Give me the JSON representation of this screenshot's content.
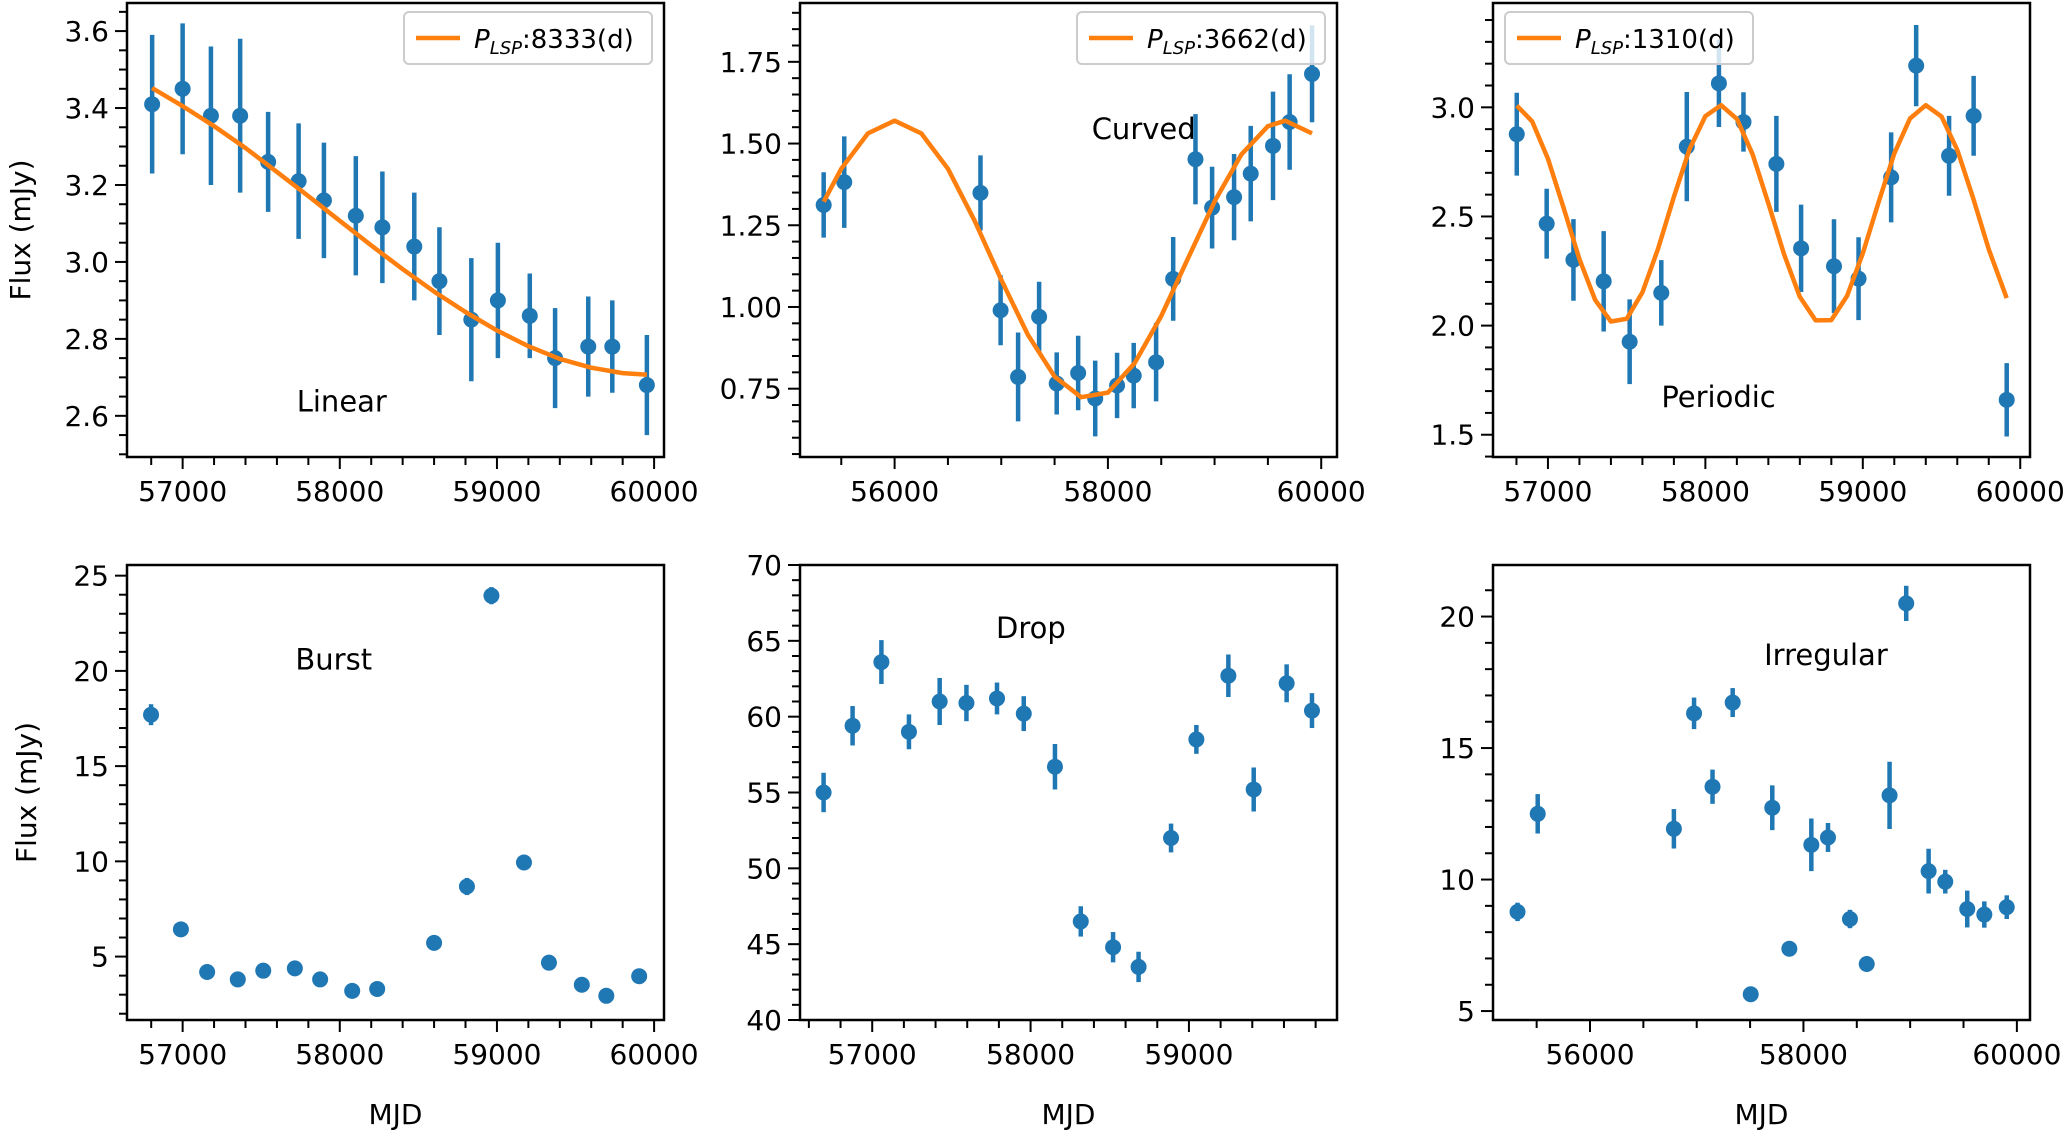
{
  "colors": {
    "points": "#1f77b4",
    "fit": "#ff7f0e"
  },
  "chart_data": [
    {
      "type": "scatter",
      "annotation": "Linear",
      "ylabel": "Flux (mJy)",
      "xlabel": "",
      "xlim": [
        56646,
        60063
      ],
      "ylim": [
        2.493,
        3.673
      ],
      "xticks": [
        57000,
        58000,
        59000,
        60000
      ],
      "xtick_labels": [
        "57000",
        "58000",
        "59000",
        "60000"
      ],
      "x_minor_step": 200,
      "yticks": [
        2.6,
        2.8,
        3.0,
        3.2,
        3.4,
        3.6
      ],
      "ytick_labels": [
        "2.6",
        "2.8",
        "3.0",
        "3.2",
        "3.4",
        "3.6"
      ],
      "y_minor_step": 0.05,
      "legend": {
        "placement": "upper right",
        "symbol": "P",
        "subscript": "LSP",
        "value": ":8333(d)"
      },
      "x": [
        56806,
        57000,
        57180,
        57366,
        57544,
        57738,
        57899,
        58102,
        58271,
        58474,
        58634,
        58837,
        59006,
        59209,
        59370,
        59581,
        59734,
        59954
      ],
      "y": [
        3.41,
        3.45,
        3.38,
        3.38,
        3.26,
        3.21,
        3.16,
        3.12,
        3.09,
        3.04,
        2.95,
        2.85,
        2.9,
        2.86,
        2.75,
        2.78,
        2.78,
        2.68
      ],
      "yerr": [
        0.18,
        0.17,
        0.18,
        0.2,
        0.13,
        0.15,
        0.15,
        0.155,
        0.145,
        0.14,
        0.14,
        0.16,
        0.15,
        0.11,
        0.13,
        0.13,
        0.12,
        0.13
      ],
      "fit": {
        "x": [
          56806,
          57000,
          57200,
          57400,
          57600,
          57800,
          58000,
          58200,
          58400,
          58600,
          58800,
          59000,
          59200,
          59400,
          59600,
          59800,
          59954
        ],
        "y": [
          3.452,
          3.405,
          3.353,
          3.296,
          3.234,
          3.171,
          3.107,
          3.043,
          2.981,
          2.923,
          2.87,
          2.822,
          2.781,
          2.748,
          2.725,
          2.711,
          2.707
        ]
      }
    },
    {
      "type": "scatter",
      "annotation": "Curved",
      "ylabel": "",
      "xlabel": "",
      "xlim": [
        55113,
        60148
      ],
      "ylim": [
        0.541,
        1.93
      ],
      "xticks": [
        56000,
        58000,
        60000
      ],
      "xtick_labels": [
        "56000",
        "58000",
        "60000"
      ],
      "x_minor_step": 500,
      "yticks": [
        0.75,
        1.0,
        1.25,
        1.5,
        1.75
      ],
      "ytick_labels": [
        "0.75",
        "1.00",
        "1.25",
        "1.50",
        "1.75"
      ],
      "y_minor_step": 0.05,
      "legend": {
        "placement": "upper right",
        "symbol": "P",
        "subscript": "LSP",
        "value": ":3662(d)"
      },
      "x": [
        55335,
        55528,
        56805,
        56994,
        57158,
        57355,
        57520,
        57721,
        57881,
        58086,
        58242,
        58452,
        58612,
        58821,
        58977,
        59183,
        59339,
        59548,
        59704,
        59914
      ],
      "y": [
        1.312,
        1.382,
        1.349,
        0.99,
        0.786,
        0.97,
        0.766,
        0.798,
        0.72,
        0.76,
        0.79,
        0.831,
        1.086,
        1.452,
        1.304,
        1.336,
        1.408,
        1.493,
        1.566,
        1.713
      ],
      "yerr": [
        0.1,
        0.14,
        0.115,
        0.107,
        0.136,
        0.107,
        0.095,
        0.114,
        0.116,
        0.1,
        0.1,
        0.12,
        0.128,
        0.138,
        0.125,
        0.132,
        0.146,
        0.166,
        0.146,
        0.148
      ],
      "fit": {
        "x": [
          55335,
          55500,
          55750,
          56000,
          56250,
          56500,
          56750,
          57000,
          57250,
          57500,
          57750,
          58000,
          58250,
          58500,
          58750,
          59000,
          59250,
          59500,
          59662,
          59914
        ],
        "y": [
          1.322,
          1.423,
          1.531,
          1.57,
          1.531,
          1.423,
          1.264,
          1.083,
          0.915,
          0.787,
          0.724,
          0.738,
          0.828,
          0.972,
          1.148,
          1.323,
          1.466,
          1.553,
          1.57,
          1.531
        ]
      }
    },
    {
      "type": "scatter",
      "annotation": "Periodic",
      "ylabel": "",
      "xlabel": "",
      "xlim": [
        56651,
        60062
      ],
      "ylim": [
        1.398,
        3.478
      ],
      "xticks": [
        57000,
        58000,
        59000,
        60000
      ],
      "xtick_labels": [
        "57000",
        "58000",
        "59000",
        "60000"
      ],
      "x_minor_step": 200,
      "yticks": [
        1.5,
        2.0,
        2.5,
        3.0
      ],
      "ytick_labels": [
        "1.5",
        "2.0",
        "2.5",
        "3.0"
      ],
      "y_minor_step": 0.1,
      "legend": {
        "placement": "upper left",
        "symbol": "P",
        "subscript": "LSP",
        "value": ":1310(d)"
      },
      "x": [
        56802,
        56992,
        57162,
        57354,
        57519,
        57720,
        57882,
        58086,
        58242,
        58451,
        58608,
        58817,
        58973,
        59180,
        59339,
        59548,
        59704,
        59914
      ],
      "y": [
        2.877,
        2.467,
        2.301,
        2.203,
        1.926,
        2.15,
        2.82,
        3.11,
        2.933,
        2.741,
        2.354,
        2.272,
        2.215,
        2.679,
        3.191,
        2.778,
        2.961,
        1.66
      ],
      "yerr": [
        0.19,
        0.16,
        0.187,
        0.23,
        0.194,
        0.15,
        0.25,
        0.2,
        0.136,
        0.22,
        0.2,
        0.215,
        0.19,
        0.206,
        0.186,
        0.183,
        0.183,
        0.168
      ],
      "fit": {
        "x": [
          56802,
          56900,
          57000,
          57100,
          57200,
          57300,
          57400,
          57500,
          57600,
          57700,
          57800,
          57900,
          58000,
          58100,
          58200,
          58300,
          58400,
          58500,
          58600,
          58700,
          58800,
          58900,
          59000,
          59100,
          59200,
          59300,
          59400,
          59500,
          59600,
          59700,
          59800,
          59914
        ],
        "y": [
          3.008,
          2.935,
          2.765,
          2.538,
          2.305,
          2.117,
          2.019,
          2.031,
          2.152,
          2.353,
          2.59,
          2.809,
          2.96,
          3.01,
          2.947,
          2.785,
          2.561,
          2.326,
          2.132,
          2.024,
          2.025,
          2.136,
          2.331,
          2.566,
          2.789,
          2.949,
          3.01,
          2.958,
          2.805,
          2.586,
          2.349,
          2.126
        ]
      }
    },
    {
      "type": "scatter",
      "annotation": "Burst",
      "ylabel": "Flux (mJy)",
      "xlabel": "MJD",
      "xlim": [
        56646,
        60063
      ],
      "ylim": [
        1.67,
        25.56
      ],
      "xticks": [
        57000,
        58000,
        59000,
        60000
      ],
      "xtick_labels": [
        "57000",
        "58000",
        "59000",
        "60000"
      ],
      "x_minor_step": 200,
      "yticks": [
        5,
        10,
        15,
        20,
        25
      ],
      "ytick_labels": [
        "5",
        "10",
        "15",
        "20",
        "25"
      ],
      "y_minor_step": 1,
      "x": [
        56799,
        56989,
        57156,
        57351,
        57513,
        57714,
        57875,
        58079,
        58238,
        58600,
        58809,
        58965,
        59172,
        59331,
        59540,
        59696,
        59905
      ],
      "y": [
        17.7,
        6.43,
        4.19,
        3.8,
        4.26,
        4.38,
        3.8,
        3.2,
        3.3,
        5.72,
        8.68,
        23.95,
        9.94,
        4.68,
        3.52,
        2.94,
        3.97
      ],
      "yerr": [
        0.55,
        0.2,
        0.2,
        0.2,
        0.2,
        0.2,
        0.2,
        0.2,
        0.2,
        0.2,
        0.45,
        0.45,
        0.2,
        0.2,
        0.2,
        0.2,
        0.2
      ]
    },
    {
      "type": "scatter",
      "annotation": "Drop",
      "ylabel": "",
      "xlabel": "MJD",
      "xlim": [
        56544,
        59935
      ],
      "ylim": [
        40,
        70
      ],
      "xticks": [
        57000,
        58000,
        59000
      ],
      "xtick_labels": [
        "57000",
        "58000",
        "59000"
      ],
      "x_minor_step": 200,
      "yticks": [
        40,
        45,
        50,
        55,
        60,
        65,
        70
      ],
      "ytick_labels": [
        "40",
        "45",
        "50",
        "55",
        "60",
        "65",
        "70"
      ],
      "y_minor_step": 1,
      "x": [
        56693,
        56876,
        57058,
        57232,
        57426,
        57595,
        57788,
        57957,
        58154,
        58317,
        58521,
        58682,
        58887,
        59047,
        59249,
        59409,
        59617,
        59777
      ],
      "y": [
        55.0,
        59.4,
        63.6,
        59.0,
        61.0,
        60.9,
        61.2,
        60.2,
        56.7,
        46.5,
        44.8,
        43.5,
        52.0,
        58.5,
        62.7,
        55.2,
        62.2,
        60.4
      ],
      "yerr": [
        1.3,
        1.3,
        1.45,
        1.15,
        1.55,
        1.2,
        1.05,
        1.15,
        1.5,
        1.0,
        1.0,
        1.0,
        0.95,
        0.95,
        1.4,
        1.45,
        1.25,
        1.15
      ]
    },
    {
      "type": "scatter",
      "annotation": "Irregular",
      "ylabel": "",
      "xlabel": "MJD",
      "xlim": [
        55091,
        60123
      ],
      "ylim": [
        4.66,
        21.96
      ],
      "xticks": [
        56000,
        58000,
        60000
      ],
      "xtick_labels": [
        "56000",
        "58000",
        "60000"
      ],
      "x_minor_step": 500,
      "yticks": [
        5,
        10,
        15,
        20
      ],
      "ytick_labels": [
        "5",
        "10",
        "15",
        "20"
      ],
      "y_minor_step": 1,
      "x": [
        55321,
        55510,
        56786,
        56975,
        57148,
        57337,
        57506,
        57708,
        57868,
        58074,
        58230,
        58436,
        58593,
        58807,
        58963,
        59173,
        59329,
        59535,
        59695,
        59905
      ],
      "y": [
        8.77,
        12.5,
        11.93,
        16.32,
        13.53,
        16.73,
        5.64,
        12.73,
        7.37,
        11.32,
        11.6,
        8.5,
        6.79,
        13.2,
        20.5,
        10.32,
        9.92,
        8.88,
        8.67,
        8.95
      ],
      "yerr": [
        0.35,
        0.75,
        0.75,
        0.6,
        0.65,
        0.55,
        0.2,
        0.85,
        0.2,
        1.0,
        0.55,
        0.35,
        0.2,
        1.28,
        0.67,
        0.85,
        0.45,
        0.7,
        0.5,
        0.45
      ]
    }
  ]
}
